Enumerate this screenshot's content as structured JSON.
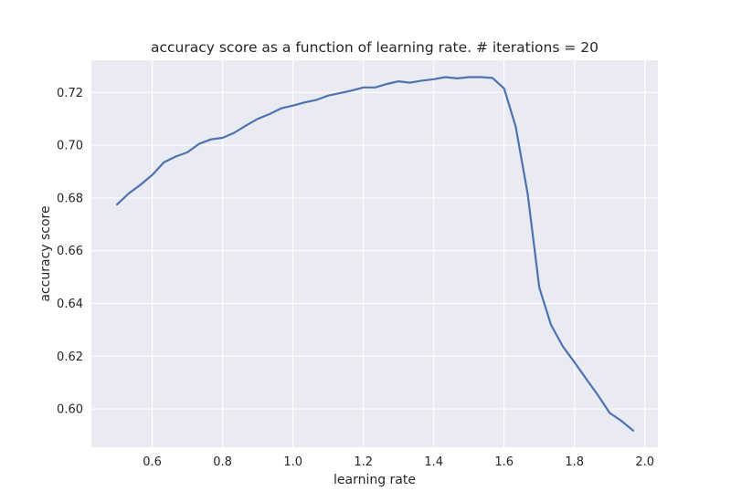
{
  "chart_data": {
    "type": "line",
    "title": "accuracy score as a function of learning rate. # iterations = 20",
    "xlabel": "learning rate",
    "ylabel": "accuracy score",
    "xlim": [
      0.427,
      2.037
    ],
    "ylim": [
      0.5855,
      0.7322
    ],
    "xticks": [
      0.6,
      0.8,
      1.0,
      1.2,
      1.4,
      1.6,
      1.8,
      2.0
    ],
    "xtick_labels": [
      "0.6",
      "0.8",
      "1.0",
      "1.2",
      "1.4",
      "1.6",
      "1.8",
      "2.0"
    ],
    "yticks": [
      0.6,
      0.62,
      0.64,
      0.66,
      0.68,
      0.7,
      0.72
    ],
    "ytick_labels": [
      "0.60",
      "0.62",
      "0.64",
      "0.66",
      "0.68",
      "0.70",
      "0.72"
    ],
    "grid": true,
    "colors": {
      "background": "#eaeaf2",
      "grid": "#ffffff",
      "line": "#4c72b0",
      "text": "#262626"
    },
    "series": [
      {
        "x": [
          0.5,
          0.533,
          0.567,
          0.6,
          0.633,
          0.667,
          0.7,
          0.733,
          0.767,
          0.8,
          0.833,
          0.867,
          0.9,
          0.933,
          0.967,
          1.0,
          1.033,
          1.067,
          1.1,
          1.133,
          1.167,
          1.2,
          1.233,
          1.267,
          1.3,
          1.333,
          1.367,
          1.4,
          1.433,
          1.467,
          1.5,
          1.533,
          1.567,
          1.6,
          1.633,
          1.667,
          1.7,
          1.733,
          1.767,
          1.8,
          1.833,
          1.867,
          1.9,
          1.933,
          1.967
        ],
        "y": [
          0.6775,
          0.6817,
          0.685,
          0.6887,
          0.6935,
          0.6957,
          0.6973,
          0.7005,
          0.7022,
          0.7028,
          0.7047,
          0.7075,
          0.71,
          0.7118,
          0.714,
          0.715,
          0.7162,
          0.7172,
          0.7188,
          0.7197,
          0.7207,
          0.7219,
          0.7219,
          0.7232,
          0.7242,
          0.7237,
          0.7245,
          0.725,
          0.7258,
          0.7253,
          0.7258,
          0.7258,
          0.7255,
          0.7215,
          0.707,
          0.6815,
          0.646,
          0.632,
          0.6237,
          0.6177,
          0.6115,
          0.6052,
          0.5985,
          0.5955,
          0.5918
        ]
      }
    ]
  }
}
